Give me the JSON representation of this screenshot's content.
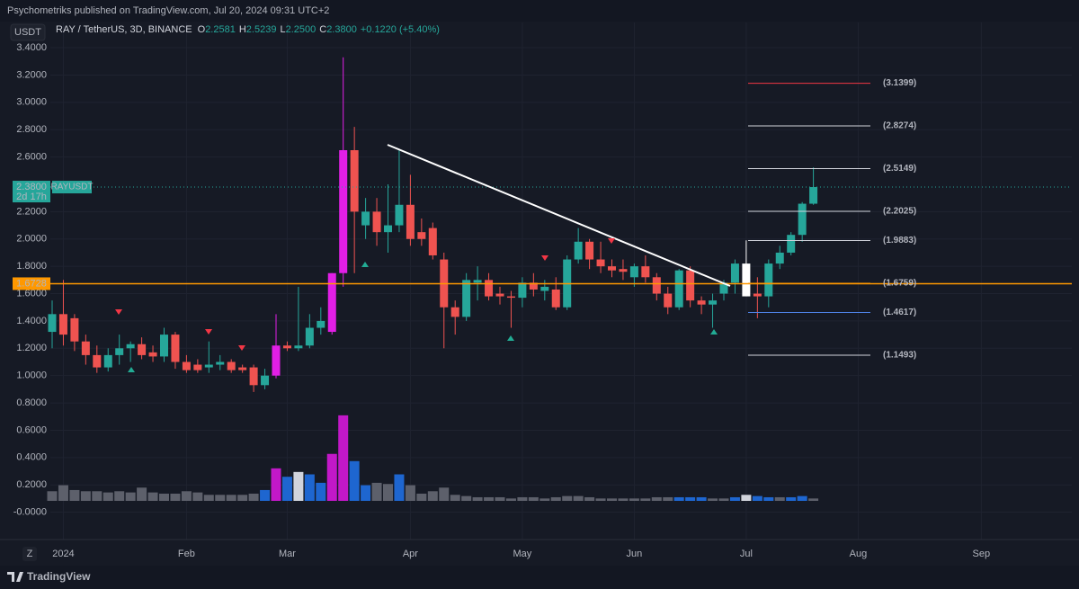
{
  "chart_data": {
    "type": "candlestick",
    "published": "Psychometriks published on TradingView.com, Jul 20, 2024 09:31 UTC+2",
    "currency": "USDT",
    "title": "RAY / TetherUS, 3D, BINANCE",
    "ohlc_legend": [
      {
        "label": "O",
        "value": "2.2581"
      },
      {
        "label": "H",
        "value": "2.5239"
      },
      {
        "label": "L",
        "value": "2.2500"
      },
      {
        "label": "C",
        "value": "2.3800"
      }
    ],
    "change": "+0.1220 (+5.40%)",
    "scale_button": "Z",
    "brand": "TradingView",
    "ylim": [
      -0.2,
      3.43
    ],
    "yticks": [
      {
        "value": 3.4,
        "label": "3.4000"
      },
      {
        "value": 3.2,
        "label": "3.2000"
      },
      {
        "value": 3,
        "label": "3.0000"
      },
      {
        "value": 2.8,
        "label": "2.8000"
      },
      {
        "value": 2.6,
        "label": "2.6000"
      },
      {
        "value": 2.2,
        "label": "2.2000"
      },
      {
        "value": 2,
        "label": "2.0000"
      },
      {
        "value": 1.8,
        "label": "1.8000"
      },
      {
        "value": 1.6,
        "label": "1.6000"
      },
      {
        "value": 1.4,
        "label": "1.4000"
      },
      {
        "value": 1.2,
        "label": "1.2000"
      },
      {
        "value": 1,
        "label": "1.0000"
      },
      {
        "value": 0.8,
        "label": "0.8000"
      },
      {
        "value": 0.6,
        "label": "0.6000"
      },
      {
        "value": 0.4,
        "label": "0.4000"
      },
      {
        "value": 0.2,
        "label": "0.2000"
      },
      {
        "value": 0,
        "label": "-0.0000"
      }
    ],
    "grid": true,
    "categories": [
      null,
      "2024",
      null,
      null,
      null,
      null,
      null,
      null,
      null,
      null,
      null,
      null,
      "Feb",
      null,
      null,
      null,
      null,
      null,
      null,
      null,
      null,
      "Mar",
      null,
      null,
      null,
      null,
      null,
      null,
      null,
      null,
      null,
      null,
      "Apr",
      null,
      null,
      null,
      null,
      null,
      null,
      null,
      null,
      null,
      "May",
      null,
      null,
      null,
      null,
      null,
      null,
      null,
      null,
      null,
      "Jun",
      null,
      null,
      null,
      null,
      null,
      null,
      null,
      null,
      null,
      "Jul",
      null,
      null,
      null,
      null,
      null,
      null,
      null,
      null,
      null,
      "Aug",
      null,
      null,
      null,
      null,
      null,
      null,
      null,
      null,
      null,
      null,
      "Sep"
    ],
    "open": [
      1.32,
      1.45,
      1.42,
      1.25,
      1.15,
      1.06,
      1.15,
      1.2,
      1.23,
      1.17,
      1.14,
      1.3,
      1.1,
      1.08,
      1.06,
      1.08,
      1.1,
      1.06,
      1.06,
      0.93,
      1.0,
      1.22,
      1.2,
      1.22,
      1.35,
      1.32,
      1.75,
      2.65,
      2.1,
      2.2,
      2.05,
      2.1,
      2.25,
      2.05,
      2.08,
      1.85,
      1.5,
      1.43,
      1.68,
      1.7,
      1.6,
      1.58,
      1.57,
      1.68,
      1.62,
      1.63,
      1.5,
      1.85,
      1.98,
      1.85,
      1.8,
      1.78,
      1.72,
      1.8,
      1.72,
      1.6,
      1.5,
      1.77,
      1.55,
      1.52,
      1.6,
      1.68,
      1.82,
      1.6,
      1.58,
      1.82,
      1.9,
      2.03,
      2.2581,
      null,
      null,
      null,
      null,
      null,
      null,
      null,
      null,
      null,
      null,
      null,
      null,
      null,
      null,
      null
    ],
    "high": [
      1.55,
      1.7,
      1.45,
      1.3,
      1.22,
      1.2,
      1.3,
      1.25,
      1.28,
      1.22,
      1.35,
      1.32,
      1.15,
      1.12,
      1.25,
      1.15,
      1.12,
      1.08,
      1.08,
      1.05,
      1.45,
      1.25,
      1.65,
      1.45,
      1.5,
      1.75,
      3.33,
      2.82,
      2.3,
      2.3,
      2.4,
      2.65,
      2.47,
      2.15,
      2.12,
      1.9,
      1.55,
      1.75,
      1.8,
      1.75,
      1.65,
      1.62,
      1.72,
      1.75,
      1.7,
      1.72,
      1.88,
      2.08,
      2.0,
      1.98,
      1.85,
      1.85,
      1.82,
      1.88,
      1.75,
      1.65,
      1.78,
      1.8,
      1.58,
      1.6,
      1.7,
      1.85,
      1.99,
      1.72,
      1.85,
      1.95,
      2.05,
      2.27,
      2.5239,
      null,
      null,
      null,
      null,
      null,
      null,
      null,
      null,
      null,
      null,
      null,
      null,
      null,
      null,
      null
    ],
    "low": [
      1.2,
      1.22,
      1.18,
      1.08,
      1.02,
      1.03,
      1.08,
      1.1,
      1.12,
      1.1,
      1.1,
      1.05,
      1.02,
      1.02,
      1.02,
      1.04,
      1.02,
      1.02,
      0.88,
      0.9,
      0.98,
      1.18,
      1.18,
      1.2,
      1.3,
      1.3,
      1.65,
      1.75,
      2.0,
      1.95,
      1.9,
      2.05,
      1.95,
      1.95,
      1.85,
      1.2,
      1.3,
      1.4,
      1.55,
      1.55,
      1.52,
      1.35,
      1.5,
      1.58,
      1.55,
      1.48,
      1.48,
      1.82,
      1.78,
      1.75,
      1.72,
      1.7,
      1.65,
      1.68,
      1.55,
      1.45,
      1.48,
      1.5,
      1.45,
      1.35,
      1.55,
      1.6,
      1.58,
      1.42,
      1.5,
      1.78,
      1.88,
      1.98,
      2.25,
      null,
      null,
      null,
      null,
      null,
      null,
      null,
      null,
      null,
      null,
      null,
      null,
      null,
      null,
      null
    ],
    "close": [
      1.45,
      1.3,
      1.25,
      1.15,
      1.06,
      1.15,
      1.2,
      1.23,
      1.15,
      1.14,
      1.3,
      1.1,
      1.04,
      1.04,
      1.08,
      1.1,
      1.04,
      1.04,
      0.93,
      1.0,
      1.22,
      1.2,
      1.22,
      1.35,
      1.4,
      1.75,
      2.65,
      2.2,
      2.2,
      2.05,
      2.1,
      2.25,
      2.0,
      2.0,
      1.88,
      1.5,
      1.43,
      1.7,
      1.7,
      1.58,
      1.58,
      1.57,
      1.68,
      1.63,
      1.65,
      1.5,
      1.85,
      1.98,
      1.85,
      1.8,
      1.77,
      1.76,
      1.8,
      1.72,
      1.6,
      1.5,
      1.77,
      1.55,
      1.52,
      1.55,
      1.68,
      1.82,
      1.58,
      1.58,
      1.82,
      1.9,
      2.03,
      2.2581,
      2.38,
      null,
      null,
      null,
      null,
      null,
      null,
      null,
      null,
      null,
      null,
      null,
      null,
      null,
      null,
      null
    ],
    "colors": [
      "#26a69a",
      "#ef5350",
      "#ef5350",
      "#ef5350",
      "#ef5350",
      "#26a69a",
      "#26a69a",
      "#26a69a",
      "#ef5350",
      "#ef5350",
      "#26a69a",
      "#ef5350",
      "#ef5350",
      "#ef5350",
      "#26a69a",
      "#26a69a",
      "#ef5350",
      "#ef5350",
      "#ef5350",
      "#26a69a",
      "#e21fe6",
      "#ef5350",
      "#26a69a",
      "#26a69a",
      "#26a69a",
      "#e21fe6",
      "#e21fe6",
      "#ef5350",
      "#26a69a",
      "#ef5350",
      "#26a69a",
      "#26a69a",
      "#ef5350",
      "#ef5350",
      "#ef5350",
      "#ef5350",
      "#ef5350",
      "#26a69a",
      "#26a69a",
      "#ef5350",
      "#ef5350",
      "#ef5350",
      "#26a69a",
      "#ef5350",
      "#26a69a",
      "#ef5350",
      "#26a69a",
      "#26a69a",
      "#ef5350",
      "#ef5350",
      "#ef5350",
      "#ef5350",
      "#26a69a",
      "#ef5350",
      "#ef5350",
      "#ef5350",
      "#26a69a",
      "#ef5350",
      "#ef5350",
      "#26a69a",
      "#26a69a",
      "#26a69a",
      "#ffffff",
      "#ef5350",
      "#26a69a",
      "#26a69a",
      "#26a69a",
      "#26a69a",
      "#26a69a",
      null,
      null,
      null,
      null,
      null,
      null,
      null,
      null,
      null,
      null,
      null,
      null,
      null,
      null,
      null
    ],
    "volume": [
      0.08,
      0.13,
      0.09,
      0.08,
      0.08,
      0.07,
      0.08,
      0.07,
      0.11,
      0.07,
      0.06,
      0.06,
      0.08,
      0.07,
      0.05,
      0.05,
      0.05,
      0.05,
      0.06,
      0.09,
      0.27,
      0.2,
      0.24,
      0.22,
      0.15,
      0.39,
      0.71,
      0.33,
      0.13,
      0.15,
      0.14,
      0.22,
      0.13,
      0.06,
      0.08,
      0.11,
      0.05,
      0.04,
      0.03,
      0.03,
      0.03,
      0.02,
      0.03,
      0.03,
      0.02,
      0.03,
      0.04,
      0.04,
      0.03,
      0.02,
      0.02,
      0.02,
      0.02,
      0.02,
      0.03,
      0.03,
      0.03,
      0.03,
      0.03,
      0.02,
      0.02,
      0.03,
      0.05,
      0.04,
      0.03,
      0.03,
      0.03,
      0.04,
      0.02,
      null,
      null,
      null,
      null,
      null,
      null,
      null,
      null,
      null,
      null,
      null,
      null,
      null,
      null,
      null
    ],
    "volume_colors": [
      "#5d606b",
      "#5d606b",
      "#5d606b",
      "#5d606b",
      "#5d606b",
      "#5d606b",
      "#5d606b",
      "#5d606b",
      "#5d606b",
      "#5d606b",
      "#5d606b",
      "#5d606b",
      "#5d606b",
      "#5d606b",
      "#5d606b",
      "#5d606b",
      "#5d606b",
      "#5d606b",
      "#5d606b",
      "#1e66d0",
      "#c218c8",
      "#1e66d0",
      "#d1d4dc",
      "#1e66d0",
      "#1e66d0",
      "#c218c8",
      "#c218c8",
      "#1e66d0",
      "#1e66d0",
      "#5d606b",
      "#5d606b",
      "#1e66d0",
      "#5d606b",
      "#5d606b",
      "#5d606b",
      "#5d606b",
      "#5d606b",
      "#5d606b",
      "#5d606b",
      "#5d606b",
      "#5d606b",
      "#5d606b",
      "#5d606b",
      "#5d606b",
      "#5d606b",
      "#5d606b",
      "#5d606b",
      "#5d606b",
      "#5d606b",
      "#5d606b",
      "#5d606b",
      "#5d606b",
      "#5d606b",
      "#5d606b",
      "#5d606b",
      "#5d606b",
      "#1e66d0",
      "#1e66d0",
      "#1e66d0",
      "#5d606b",
      "#5d606b",
      "#1e66d0",
      "#d1d4dc",
      "#1e66d0",
      "#1e66d0",
      "#5d606b",
      "#1e66d0",
      "#1e66d0",
      "#5d606b",
      null,
      null,
      null,
      null,
      null,
      null,
      null,
      null,
      null,
      null,
      null,
      null,
      null,
      null,
      null
    ],
    "support_line": {
      "value": 1.6728,
      "label": "1.6728",
      "color": "#ff9800"
    },
    "last_price": {
      "value": 2.38,
      "label": "2.3800",
      "countdown": "2d 17h",
      "symbol": "RAYUSDT",
      "color": "#26a69a"
    },
    "fib_levels": [
      {
        "value": 3.1399,
        "label": "(3.1399)",
        "color": "#f23645"
      },
      {
        "value": 2.8274,
        "label": "(2.8274)",
        "color": "#d1d4dc"
      },
      {
        "value": 2.5149,
        "label": "(2.5149)",
        "color": "#d1d4dc"
      },
      {
        "value": 2.2025,
        "label": "(2.2025)",
        "color": "#d1d4dc"
      },
      {
        "value": 1.9883,
        "label": "(1.9883)",
        "color": "#d1d4dc"
      },
      {
        "value": 1.6759,
        "label": "(1.6759)",
        "color": "#ff9800"
      },
      {
        "value": 1.4617,
        "label": "(1.4617)",
        "color": "#4f83e6"
      },
      {
        "value": 1.1493,
        "label": "(1.1493)",
        "color": "#d1d4dc"
      }
    ]
  }
}
